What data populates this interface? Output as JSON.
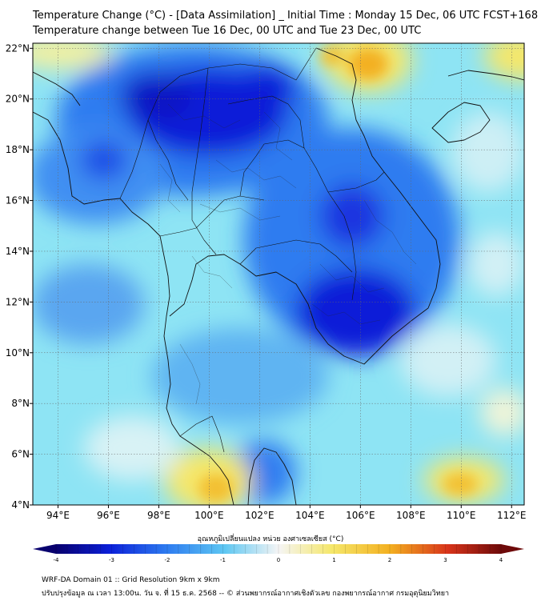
{
  "title": {
    "line1": "Temperature Change (°C) - [Data Assimilation] _ Initial Time : Monday 15 Dec, 06 UTC FCST+168",
    "line2": "Temperature change between Tue 16 Dec, 00 UTC and Tue 23 Dec, 00 UTC"
  },
  "map": {
    "lon_range": [
      93,
      112.5
    ],
    "lat_range": [
      4,
      22.2
    ],
    "x_ticks": [
      94,
      96,
      98,
      100,
      102,
      104,
      106,
      108,
      110,
      112
    ],
    "x_tick_labels": [
      "94°E",
      "96°E",
      "98°E",
      "100°E",
      "102°E",
      "104°E",
      "106°E",
      "108°E",
      "110°E",
      "112°E"
    ],
    "y_ticks": [
      4,
      6,
      8,
      10,
      12,
      14,
      16,
      18,
      20,
      22
    ],
    "y_tick_labels": [
      "4°N",
      "6°N",
      "8°N",
      "10°N",
      "12°N",
      "14°N",
      "16°N",
      "18°N",
      "20°N",
      "22°N"
    ],
    "grid": true,
    "colors": {
      "background_field": "#8ee4f4",
      "strong_cooling": "#0b1fd8",
      "moderate_cooling": "#2e7cf0",
      "weak_cooling": "#5ec7f2",
      "neutral": "#eef6f9",
      "warming": "#f5e76a",
      "strong_warming": "#f3b020"
    }
  },
  "colorbar": {
    "title": "อุณหภูมิเปลี่ยนแปลง หน่วย องศาเซลเซียส (°C)",
    "min": -4,
    "max": 4,
    "ticks": [
      -4,
      -3,
      -2,
      -1,
      0,
      1,
      2,
      3,
      4
    ],
    "tick_labels": [
      "-4",
      "-3",
      "-2",
      "-1",
      "0",
      "1",
      "2",
      "3",
      "4"
    ],
    "colors": [
      "#08006e",
      "#0b1fd8",
      "#2e7cf0",
      "#5ec7f2",
      "#f5f5f5",
      "#f5e76a",
      "#f3b020",
      "#d8341a",
      "#6e0a0a"
    ]
  },
  "footer": {
    "line1": "WRF-DA Domain 01 :: Grid Resolution 9km x 9km",
    "line2": "ปรับปรุงข้อมูล ณ เวลา 13:00น. วัน จ. ที่ 15 ธ.ค. 2568 -- © ส่วนพยากรณ์อากาศเชิงตัวเลข กองพยากรณ์อากาศ กรมอุตุนิยมวิทยา"
  }
}
